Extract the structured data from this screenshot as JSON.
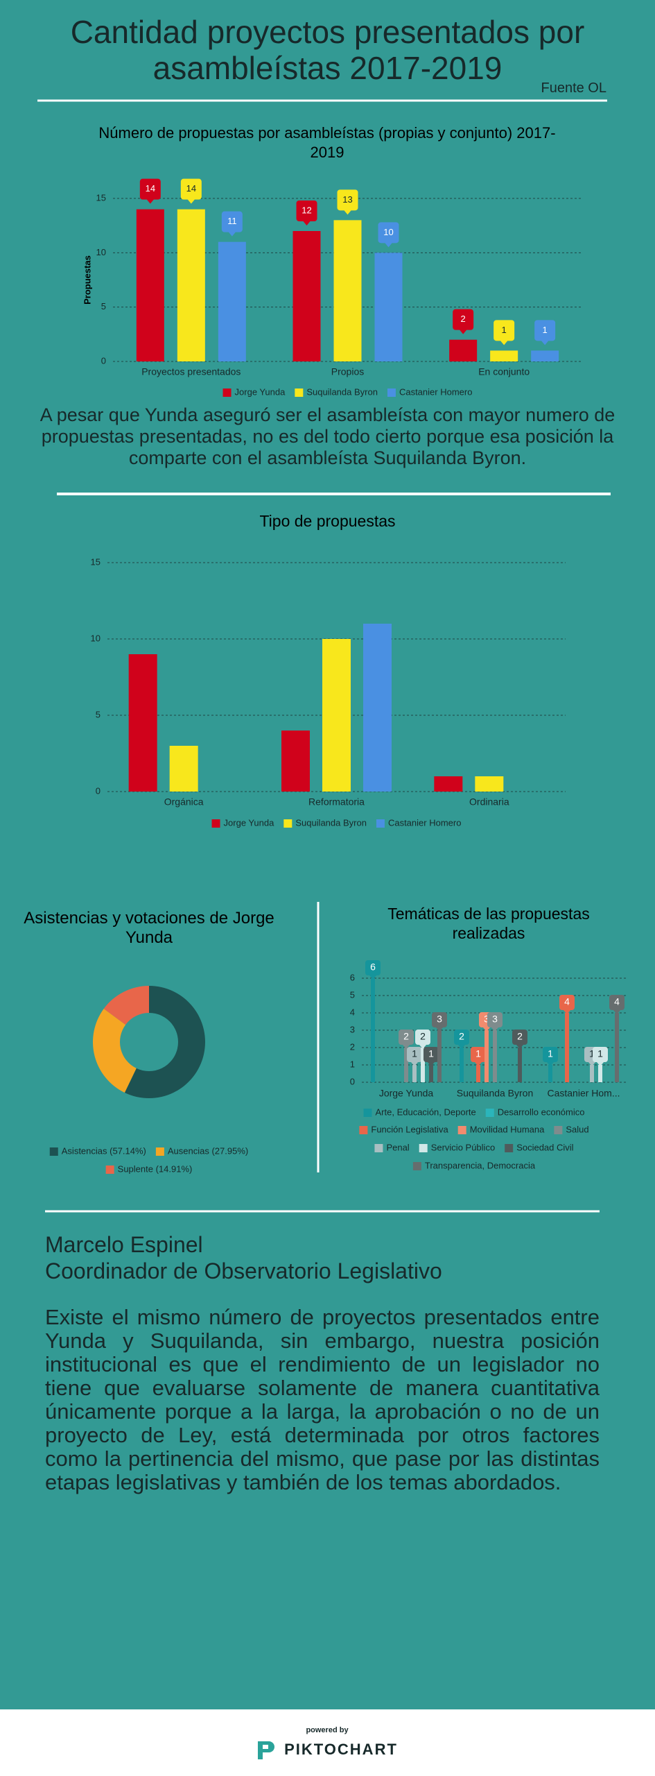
{
  "header": {
    "title": "Cantidad proyectos presentados por asambleístas 2017-2019",
    "source": "Fuente OL"
  },
  "chart_data": [
    {
      "type": "bar",
      "title": "Número de propuestas por asambleístas (propias y conjunto) 2017-2019",
      "y_label": "Propuestas",
      "categories": [
        "Proyectos presentados",
        "Propios",
        "En conjunto"
      ],
      "series": [
        {
          "name": "Jorge Yunda",
          "color": "#d0021b",
          "values": [
            14,
            12,
            2
          ]
        },
        {
          "name": "Suquilanda Byron",
          "color": "#f8e71c",
          "values": [
            14,
            13,
            1
          ]
        },
        {
          "name": "Castanier Homero",
          "color": "#4a90e2",
          "values": [
            11,
            10,
            1
          ]
        }
      ],
      "ylim": [
        0,
        15
      ],
      "yticks": [
        0,
        5,
        10,
        15
      ],
      "grid": true,
      "data_labels": true
    },
    {
      "type": "bar",
      "title": "Tipo de propuestas",
      "categories": [
        "Orgánica",
        "Reformatoria",
        "Ordinaria"
      ],
      "series": [
        {
          "name": "Jorge Yunda",
          "color": "#d0021b",
          "values": [
            9,
            4,
            1
          ]
        },
        {
          "name": "Suquilanda Byron",
          "color": "#f8e71c",
          "values": [
            3,
            10,
            1
          ]
        },
        {
          "name": "Castanier Homero",
          "color": "#4a90e2",
          "values": [
            null,
            11,
            null
          ]
        }
      ],
      "ylim": [
        0,
        15
      ],
      "yticks": [
        0,
        5,
        10,
        15
      ],
      "grid": true,
      "data_labels": false
    },
    {
      "type": "donut",
      "title": "Asistencias y votaciones de Jorge Yunda",
      "categories": [
        "Asistencias (57.14%)",
        "Ausencias (27.95%)",
        "Suplente (14.91%)"
      ],
      "values": [
        57.14,
        27.95,
        14.91
      ],
      "colors": [
        "#1d5252",
        "#f5a623",
        "#e8664a"
      ]
    },
    {
      "type": "lollipop",
      "title": "Temáticas de las propuestas realizadas",
      "categories": [
        "Jorge Yunda",
        "Suquilanda Byron",
        "Castanier Hom..."
      ],
      "series": [
        {
          "name": "Arte, Educación, Deporte",
          "color": "#15959c",
          "values": [
            6,
            2,
            1
          ]
        },
        {
          "name": "Desarrollo económico",
          "color": "#2bb5bb",
          "values": [
            null,
            null,
            null
          ]
        },
        {
          "name": "Función Legislativa",
          "color": "#e8664a",
          "values": [
            null,
            1,
            4
          ]
        },
        {
          "name": "Movilidad Humana",
          "color": "#f28b6e",
          "values": [
            null,
            3,
            null
          ]
        },
        {
          "name": "Salud",
          "color": "#7f8c8d",
          "values": [
            2,
            3,
            null
          ]
        },
        {
          "name": "Penal",
          "color": "#a9bfc2",
          "values": [
            1,
            null,
            1
          ]
        },
        {
          "name": "Servicio Público",
          "color": "#d2e8e8",
          "values": [
            2,
            null,
            1
          ]
        },
        {
          "name": "Sociedad Civil",
          "color": "#4f5b5c",
          "values": [
            1,
            2,
            null
          ]
        },
        {
          "name": "Transparencia, Democracia",
          "color": "#666d6e",
          "values": [
            3,
            null,
            4
          ]
        }
      ],
      "ylim": [
        0,
        6
      ],
      "yticks": [
        0,
        1,
        2,
        3,
        4,
        5,
        6
      ],
      "grid": true,
      "data_labels": true
    }
  ],
  "commentary": "A pesar que Yunda aseguró ser el asambleísta con mayor numero de propuestas presentadas, no es del todo cierto porque esa posición la comparte con el asambleísta Suquilanda Byron.",
  "author": {
    "name": "Marcelo Espinel",
    "role": "Coordinador de Observatorio Legislativo"
  },
  "body": "Existe el mismo número de proyectos presentados entre Yunda y Suquilanda, sin embargo, nuestra posición institucional es que  el rendimiento de un legislador no tiene que evaluarse solamente de manera cuantitativa únicamente porque a la larga, la aprobación o no de un proyecto de Ley, está determinada por otros factores como la pertinencia del mismo, que pase por las distintas etapas legislativas y también de los temas abordados.",
  "footer": {
    "powered_by": "powered by",
    "brand": "PIKTOCHART"
  }
}
